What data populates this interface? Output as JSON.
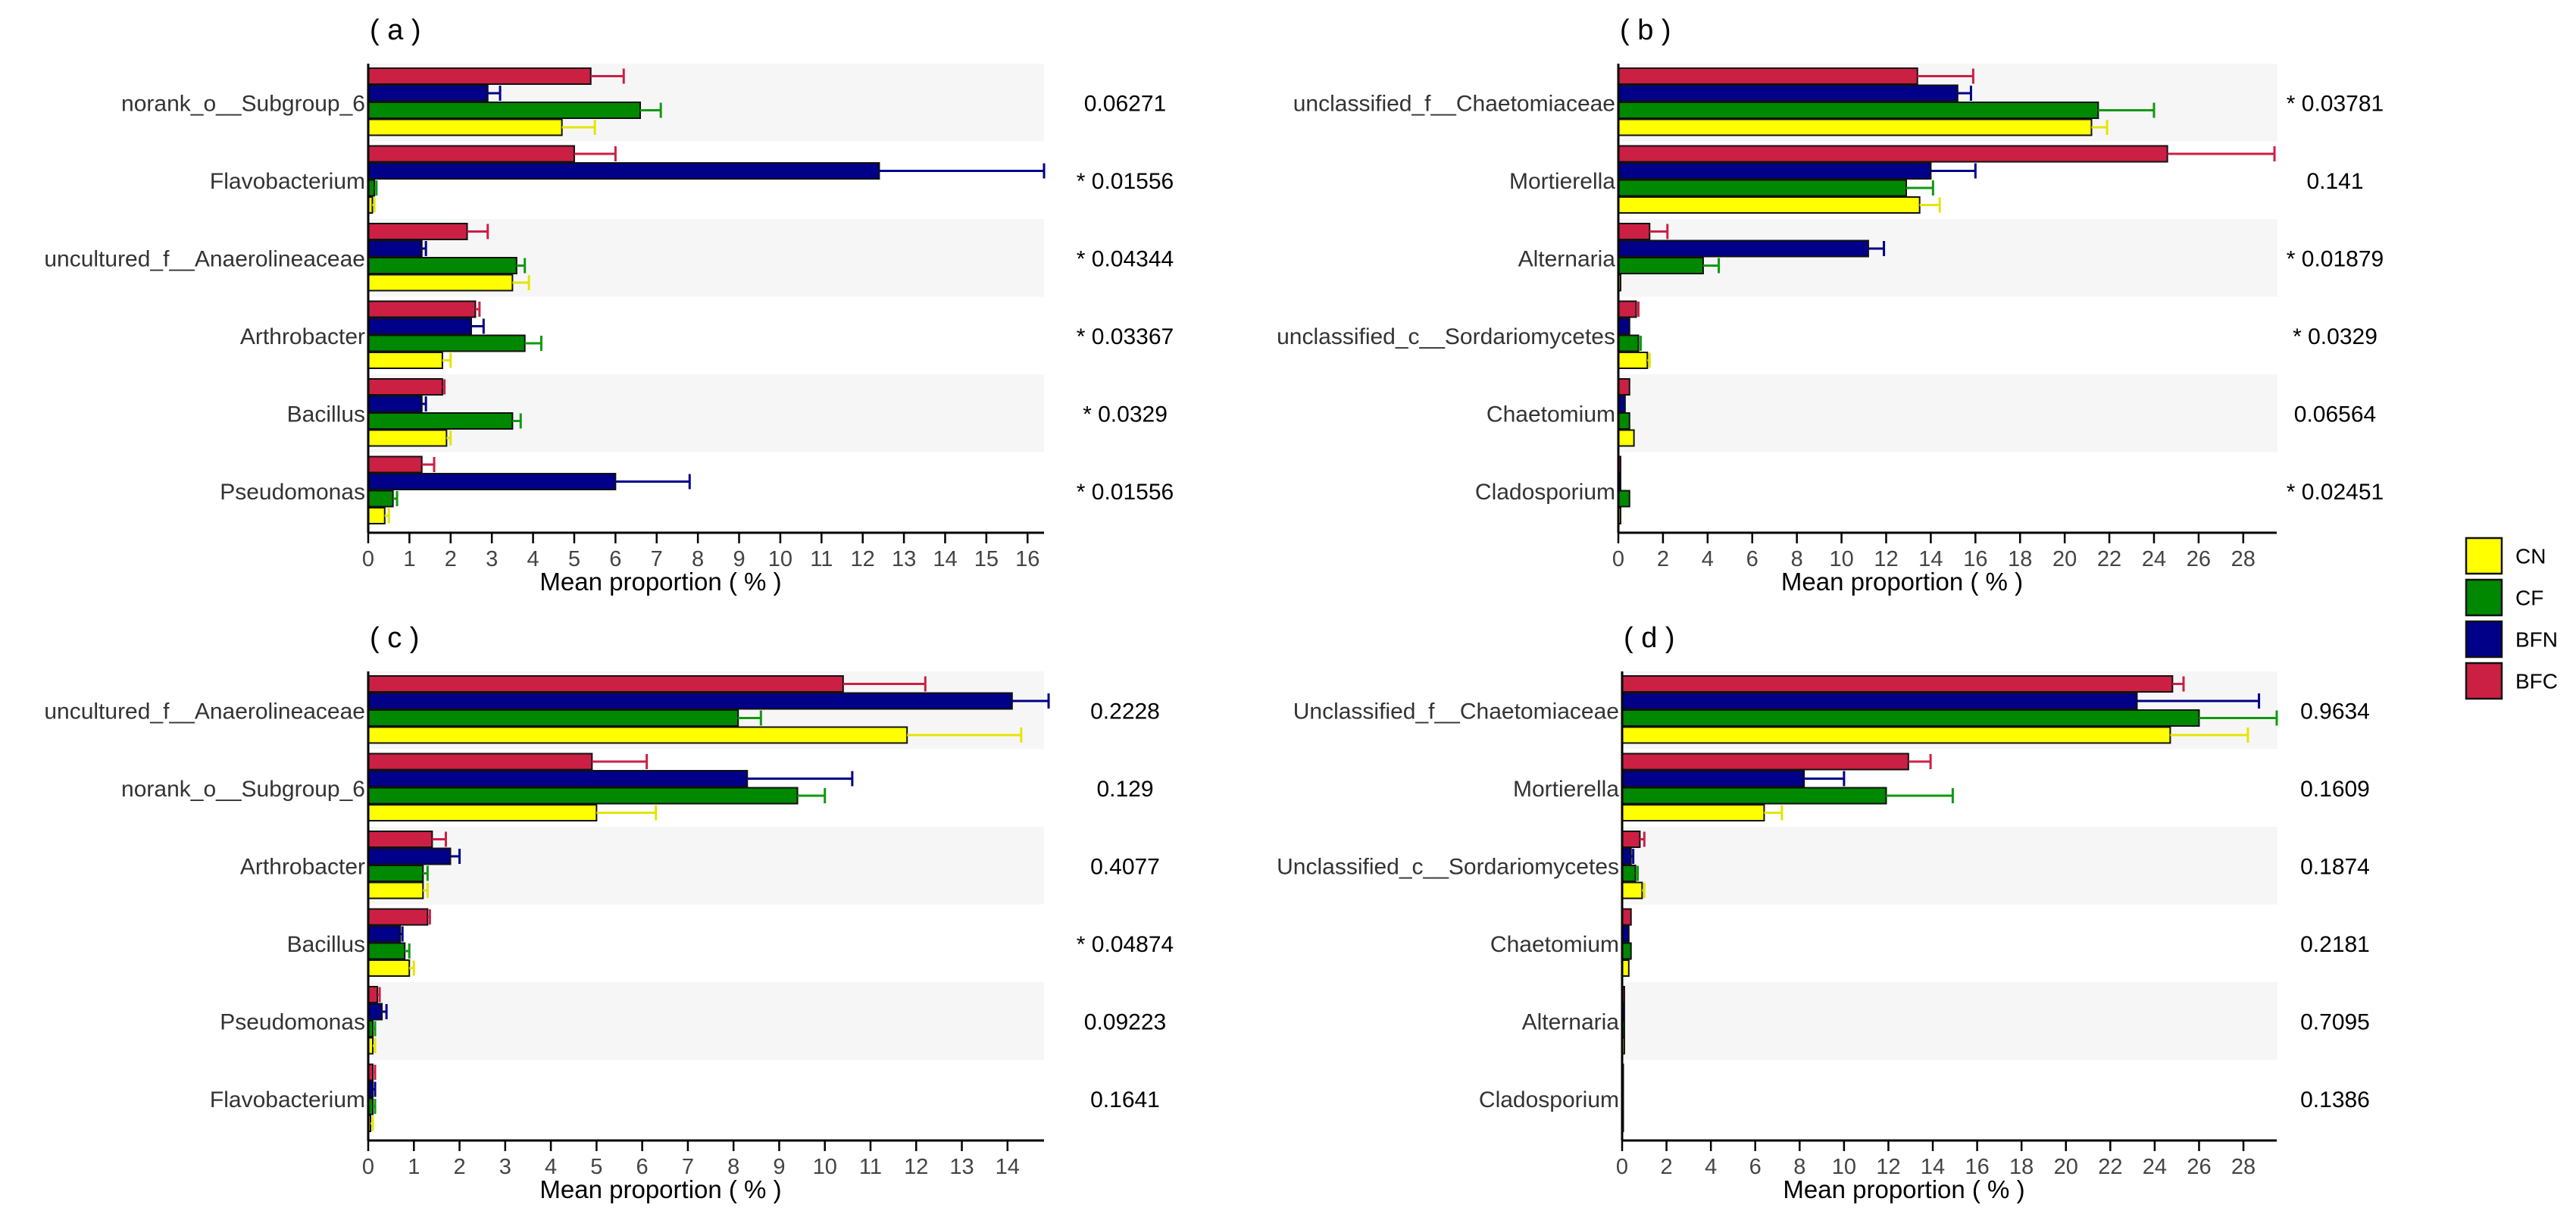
{
  "legend": {
    "entries": [
      {
        "name": "CN",
        "color": "#ffff00"
      },
      {
        "name": "CF",
        "color": "#008800"
      },
      {
        "name": "BFN",
        "color": "#000088"
      },
      {
        "name": "BFC",
        "color": "#cc1f44"
      }
    ]
  },
  "chart_data": [
    {
      "type": "bar",
      "orientation": "horizontal",
      "title": "( a )",
      "xlabel": "Mean proportion ( % )",
      "xlim": [
        0,
        16.4
      ],
      "xticks": [
        0,
        1,
        2,
        3,
        4,
        5,
        6,
        7,
        8,
        9,
        10,
        11,
        12,
        13,
        14,
        15,
        16
      ],
      "categories": [
        "norank_o__Subgroup_6",
        "Flavobacterium",
        "uncultured_f__Anaerolineaceae",
        "Arthrobacter",
        "Bacillus",
        "Pseudomonas"
      ],
      "series": [
        {
          "name": "CN",
          "values": [
            4.7,
            0.1,
            3.5,
            1.8,
            1.9,
            0.4
          ],
          "errors": [
            0.8,
            0.05,
            0.4,
            0.2,
            0.1,
            0.1
          ]
        },
        {
          "name": "CF",
          "values": [
            6.6,
            0.15,
            3.6,
            3.8,
            3.5,
            0.6
          ],
          "errors": [
            0.5,
            0.05,
            0.2,
            0.4,
            0.2,
            0.1
          ]
        },
        {
          "name": "BFN",
          "values": [
            2.9,
            12.4,
            1.3,
            2.5,
            1.3,
            6.0
          ],
          "errors": [
            0.3,
            4.0,
            0.1,
            0.3,
            0.1,
            1.8
          ]
        },
        {
          "name": "BFC",
          "values": [
            5.4,
            5.0,
            2.4,
            2.6,
            1.8,
            1.3
          ],
          "errors": [
            0.8,
            1.0,
            0.5,
            0.1,
            0.05,
            0.3
          ]
        }
      ],
      "pvalues": [
        "0.06271",
        "* 0.01556",
        "* 0.04344",
        "* 0.03367",
        "* 0.0329",
        "* 0.01556"
      ]
    },
    {
      "type": "bar",
      "orientation": "horizontal",
      "title": "( b )",
      "xlabel": "Mean proportion ( % )",
      "xlim": [
        0,
        29.5
      ],
      "xticks": [
        0,
        2,
        4,
        6,
        8,
        10,
        12,
        14,
        16,
        18,
        20,
        22,
        24,
        26,
        28
      ],
      "categories": [
        "unclassified_f__Chaetomiaceae",
        "Mortierella",
        "Alternaria",
        "unclassified_c__Sordariomycetes",
        "Chaetomium",
        "Cladosporium"
      ],
      "series": [
        {
          "name": "CN",
          "values": [
            21.2,
            13.5,
            0.1,
            1.3,
            0.7,
            0.1
          ],
          "errors": [
            0.7,
            0.9,
            0.05,
            0.1,
            0.05,
            0.05
          ]
        },
        {
          "name": "CF",
          "values": [
            21.5,
            12.9,
            3.8,
            0.9,
            0.5,
            0.5
          ],
          "errors": [
            2.5,
            1.2,
            0.7,
            0.1,
            0.05,
            0.05
          ]
        },
        {
          "name": "BFN",
          "values": [
            15.2,
            14.0,
            11.2,
            0.5,
            0.3,
            0.1
          ],
          "errors": [
            0.6,
            2.0,
            0.7,
            0.05,
            0.05,
            0.05
          ]
        },
        {
          "name": "BFC",
          "values": [
            13.4,
            24.6,
            1.4,
            0.8,
            0.5,
            0.1
          ],
          "errors": [
            2.5,
            4.8,
            0.8,
            0.1,
            0.05,
            0.05
          ]
        }
      ],
      "pvalues": [
        "* 0.03781",
        "0.141",
        "* 0.01879",
        "* 0.0329",
        "0.06564",
        "* 0.02451"
      ]
    },
    {
      "type": "bar",
      "orientation": "horizontal",
      "title": "( c )",
      "xlabel": "Mean proportion ( % )",
      "xlim": [
        0,
        14.8
      ],
      "xticks": [
        0,
        1,
        2,
        3,
        4,
        5,
        6,
        7,
        8,
        9,
        10,
        11,
        12,
        13,
        14
      ],
      "categories": [
        "uncultured_f__Anaerolineaceae",
        "norank_o__Subgroup_6",
        "Arthrobacter",
        "Bacillus",
        "Pseudomonas",
        "Flavobacterium"
      ],
      "series": [
        {
          "name": "CN",
          "values": [
            11.8,
            5.0,
            1.2,
            0.9,
            0.1,
            0.05
          ],
          "errors": [
            2.5,
            1.3,
            0.1,
            0.1,
            0.05,
            0.05
          ]
        },
        {
          "name": "CF",
          "values": [
            8.1,
            9.4,
            1.2,
            0.8,
            0.1,
            0.1
          ],
          "errors": [
            0.5,
            0.6,
            0.1,
            0.1,
            0.05,
            0.05
          ]
        },
        {
          "name": "BFN",
          "values": [
            14.1,
            8.3,
            1.8,
            0.7,
            0.3,
            0.1
          ],
          "errors": [
            0.8,
            2.3,
            0.2,
            0.05,
            0.1,
            0.05
          ]
        },
        {
          "name": "BFC",
          "values": [
            10.4,
            4.9,
            1.4,
            1.3,
            0.2,
            0.1
          ],
          "errors": [
            1.8,
            1.2,
            0.3,
            0.05,
            0.05,
            0.05
          ]
        }
      ],
      "pvalues": [
        "0.2228",
        "0.129",
        "0.4077",
        "* 0.04874",
        "0.09223",
        "0.1641"
      ]
    },
    {
      "type": "bar",
      "orientation": "horizontal",
      "title": "( d )",
      "xlabel": "Mean proportion ( % )",
      "xlim": [
        0,
        29.5
      ],
      "xticks": [
        0,
        2,
        4,
        6,
        8,
        10,
        12,
        14,
        16,
        18,
        20,
        22,
        24,
        26,
        28
      ],
      "categories": [
        "Unclassified_f__Chaetomiaceae",
        "Mortierella",
        "Unclassified_c__Sordariomycetes",
        "Chaetomium",
        "Alternaria",
        "Cladosporium"
      ],
      "series": [
        {
          "name": "CN",
          "values": [
            24.7,
            6.4,
            0.9,
            0.3,
            0.1,
            0.05
          ],
          "errors": [
            3.5,
            0.8,
            0.1,
            0.05,
            0.05,
            0.05
          ]
        },
        {
          "name": "CF",
          "values": [
            26.0,
            11.9,
            0.6,
            0.4,
            0.1,
            0.05
          ],
          "errors": [
            3.5,
            3.0,
            0.1,
            0.05,
            0.05,
            0.05
          ]
        },
        {
          "name": "BFN",
          "values": [
            23.2,
            8.2,
            0.4,
            0.3,
            0.1,
            0.05
          ],
          "errors": [
            5.5,
            1.8,
            0.1,
            0.05,
            0.05,
            0.05
          ]
        },
        {
          "name": "BFC",
          "values": [
            24.8,
            12.9,
            0.8,
            0.4,
            0.1,
            0.05
          ],
          "errors": [
            0.5,
            1.0,
            0.2,
            0.05,
            0.05,
            0.05
          ]
        }
      ],
      "pvalues": [
        "0.9634",
        "0.1609",
        "0.1874",
        "0.2181",
        "0.7095",
        "0.1386"
      ]
    }
  ]
}
